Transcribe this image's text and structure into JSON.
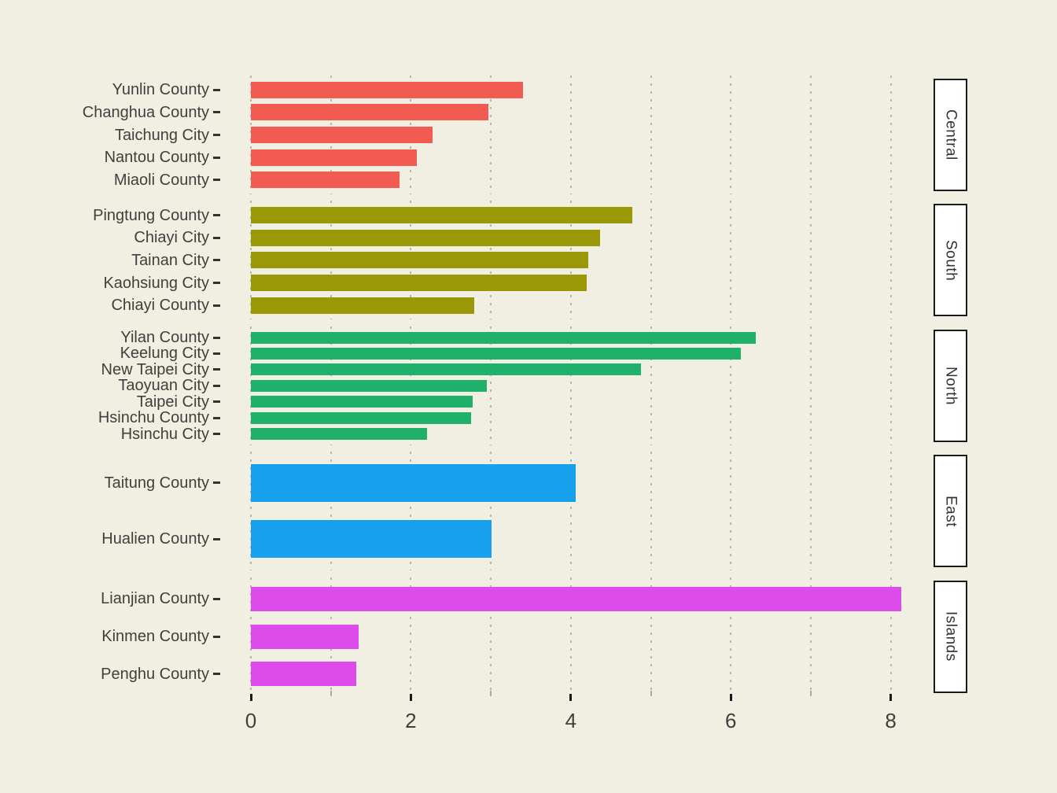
{
  "chart": {
    "background_color": "#F0EFE1",
    "text_color": "#3F3F3F",
    "grid_color": "#B5B5AD",
    "strip_background": "#FFFFFF",
    "strip_border_color": "#1B1B1B"
  },
  "chart_data": {
    "type": "bar",
    "orientation": "horizontal",
    "title": "",
    "xlabel": "",
    "ylabel": "",
    "x_ticks": [
      0,
      2,
      4,
      6,
      8
    ],
    "xlim": [
      0,
      8.6
    ],
    "grid": "dotted vertical gridlines every 1 unit",
    "legend_position": "none",
    "facet_position": "right-strips",
    "facets": [
      {
        "label": "Central",
        "color": "#F25B52",
        "rows": [
          {
            "name": "Yunlin County",
            "value": 3.4
          },
          {
            "name": "Changhua County",
            "value": 2.97
          },
          {
            "name": "Taichung City",
            "value": 2.27
          },
          {
            "name": "Nantou County",
            "value": 2.07
          },
          {
            "name": "Miaoli County",
            "value": 1.86
          }
        ]
      },
      {
        "label": "South",
        "color": "#9A9806",
        "rows": [
          {
            "name": "Pingtung County",
            "value": 4.77
          },
          {
            "name": "Chiayi City",
            "value": 4.37
          },
          {
            "name": "Tainan City",
            "value": 4.22
          },
          {
            "name": "Kaohsiung City",
            "value": 4.2
          },
          {
            "name": "Chiayi County",
            "value": 2.79
          }
        ]
      },
      {
        "label": "North",
        "color": "#1FB069",
        "rows": [
          {
            "name": "Yilan County",
            "value": 6.31
          },
          {
            "name": "Keelung City",
            "value": 6.13
          },
          {
            "name": "New Taipei City",
            "value": 4.88
          },
          {
            "name": "Taoyuan City",
            "value": 2.95
          },
          {
            "name": "Taipei City",
            "value": 2.77
          },
          {
            "name": "Hsinchu County",
            "value": 2.75
          },
          {
            "name": "Hsinchu City",
            "value": 2.2
          }
        ]
      },
      {
        "label": "East",
        "color": "#17A1ED",
        "rows": [
          {
            "name": "Taitung County",
            "value": 4.06
          },
          {
            "name": "Hualien County",
            "value": 3.01
          }
        ]
      },
      {
        "label": "Islands",
        "color": "#DD4BEB",
        "rows": [
          {
            "name": "Lianjian County",
            "value": 8.13
          },
          {
            "name": "Kinmen County",
            "value": 1.35
          },
          {
            "name": "Penghu County",
            "value": 1.32
          }
        ]
      }
    ]
  }
}
